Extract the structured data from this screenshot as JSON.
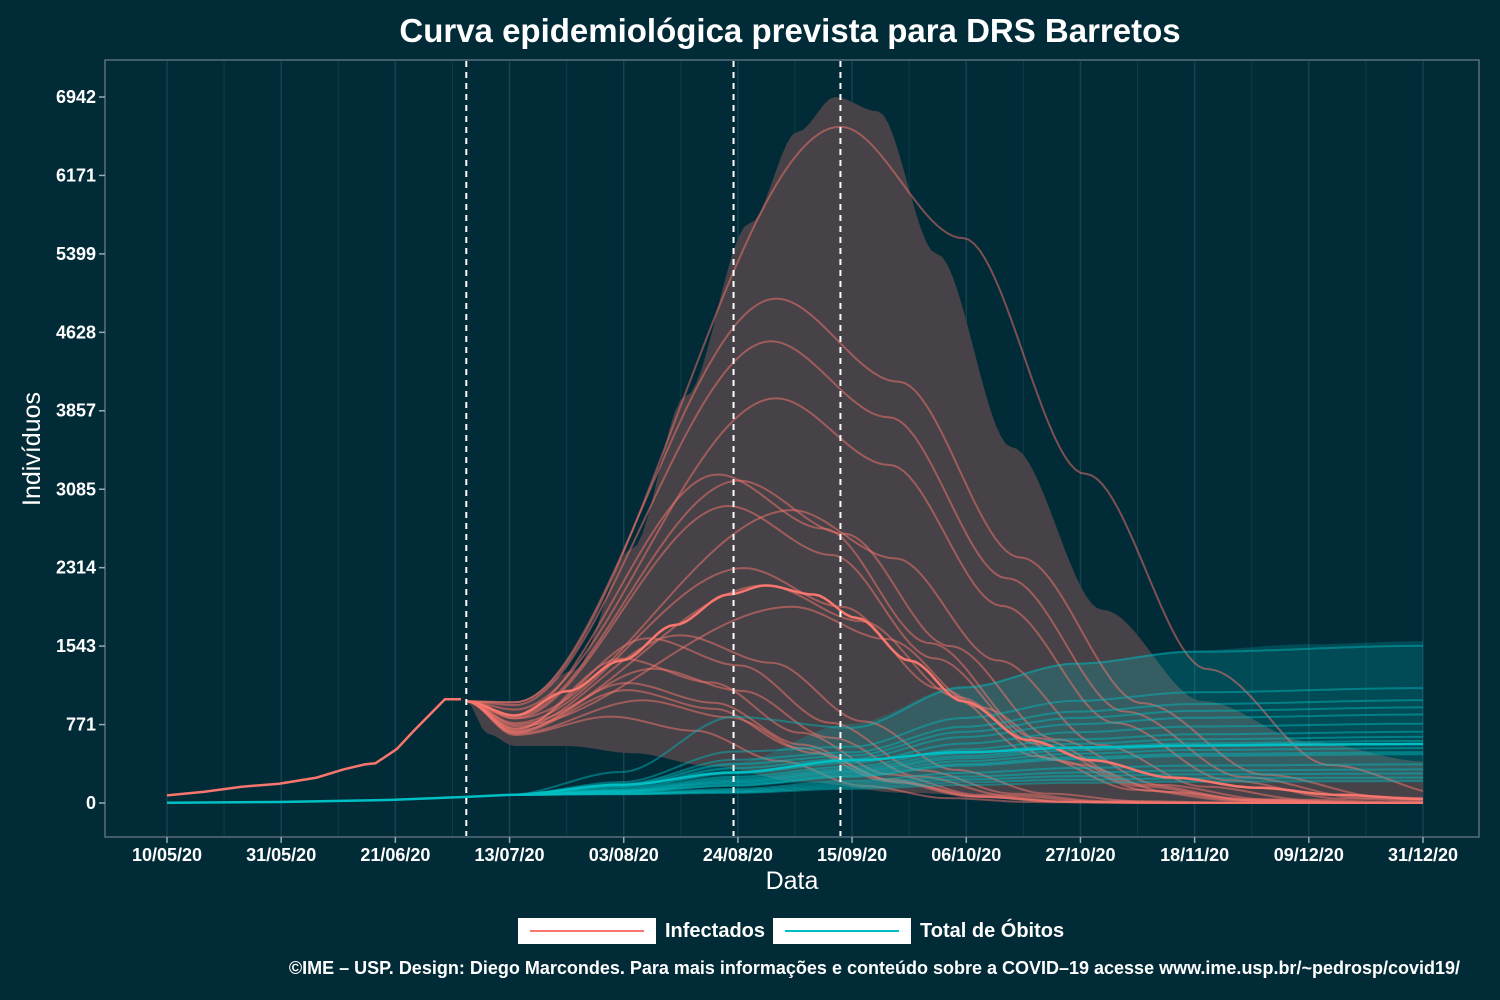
{
  "chart_data": {
    "type": "line",
    "title": "Curva epidemiológica prevista para DRS Barretos",
    "xlabel": "Data",
    "ylabel": "Indivíduos",
    "x_ticks": [
      "10/05/20",
      "31/05/20",
      "21/06/20",
      "13/07/20",
      "03/08/20",
      "24/08/20",
      "15/09/20",
      "06/10/20",
      "27/10/20",
      "18/11/20",
      "09/12/20",
      "31/12/20"
    ],
    "x_range": [
      "2020-05-10",
      "2020-12-31"
    ],
    "y_ticks": [
      0,
      771,
      1543,
      2314,
      3085,
      3857,
      4628,
      5399,
      6171,
      6942
    ],
    "ylim": [
      -330,
      7060
    ],
    "vlines": [
      "2020-07-05",
      "2020-08-24",
      "2020-09-13"
    ],
    "grid": "vertical",
    "legend_position": "bottom",
    "colors": {
      "background": "#022b38",
      "infected": "#f8766d",
      "deaths": "#00bfc4",
      "band": "#4a4348",
      "vline": "#ffffff"
    },
    "series": [
      {
        "name": "Infectados",
        "observed": [
          [
            "2020-05-10",
            75
          ],
          [
            "2020-05-17",
            110
          ],
          [
            "2020-05-24",
            160
          ],
          [
            "2020-05-31",
            190
          ],
          [
            "2020-06-07",
            250
          ],
          [
            "2020-06-12",
            330
          ],
          [
            "2020-06-16",
            380
          ],
          [
            "2020-06-18",
            390
          ],
          [
            "2020-06-22",
            530
          ],
          [
            "2020-06-25",
            700
          ],
          [
            "2020-07-01",
            1020
          ],
          [
            "2020-07-04",
            1020
          ]
        ],
        "median_forecast": [
          [
            "2020-07-05",
            1000
          ],
          [
            "2020-07-14",
            860
          ],
          [
            "2020-07-24",
            1100
          ],
          [
            "2020-08-03",
            1400
          ],
          [
            "2020-08-13",
            1750
          ],
          [
            "2020-08-23",
            2050
          ],
          [
            "2020-08-30",
            2140
          ],
          [
            "2020-09-08",
            2050
          ],
          [
            "2020-09-16",
            1820
          ],
          [
            "2020-09-26",
            1400
          ],
          [
            "2020-10-06",
            1000
          ],
          [
            "2020-10-18",
            620
          ],
          [
            "2020-10-30",
            420
          ],
          [
            "2020-11-14",
            250
          ],
          [
            "2020-11-30",
            150
          ],
          [
            "2020-12-15",
            80
          ],
          [
            "2020-12-31",
            40
          ]
        ],
        "band_upper": [
          [
            "2020-07-05",
            1000
          ],
          [
            "2020-07-15",
            980
          ],
          [
            "2020-07-25",
            1300
          ],
          [
            "2020-08-05",
            2500
          ],
          [
            "2020-08-15",
            4000
          ],
          [
            "2020-08-27",
            5700
          ],
          [
            "2020-09-05",
            6600
          ],
          [
            "2020-09-12",
            6942
          ],
          [
            "2020-09-20",
            6800
          ],
          [
            "2020-10-01",
            5400
          ],
          [
            "2020-10-15",
            3500
          ],
          [
            "2020-11-01",
            1900
          ],
          [
            "2020-11-20",
            1000
          ],
          [
            "2020-12-10",
            600
          ],
          [
            "2020-12-31",
            410
          ]
        ],
        "band_lower": [
          [
            "2020-07-05",
            1000
          ],
          [
            "2020-07-09",
            680
          ],
          [
            "2020-07-14",
            560
          ],
          [
            "2020-07-24",
            560
          ],
          [
            "2020-08-05",
            490
          ],
          [
            "2020-08-20",
            360
          ],
          [
            "2020-09-05",
            210
          ],
          [
            "2020-09-25",
            100
          ],
          [
            "2020-10-20",
            30
          ],
          [
            "2020-11-20",
            10
          ],
          [
            "2020-12-31",
            0
          ]
        ],
        "scenario_peaks": [
          [
            6650,
            "2020-09-13"
          ],
          [
            4960,
            "2020-09-01"
          ],
          [
            4540,
            "2020-08-31"
          ],
          [
            3980,
            "2020-09-01"
          ],
          [
            3230,
            "2020-08-21"
          ],
          [
            3170,
            "2020-08-25"
          ],
          [
            2920,
            "2020-08-23"
          ],
          [
            2880,
            "2020-09-04"
          ],
          [
            2310,
            "2020-08-26"
          ],
          [
            2140,
            "2020-08-30"
          ],
          [
            1930,
            "2020-09-04"
          ],
          [
            1650,
            "2020-08-14"
          ],
          [
            1620,
            "2020-08-08"
          ],
          [
            1420,
            "2020-08-03"
          ],
          [
            1320,
            "2020-08-09"
          ],
          [
            1180,
            "2020-08-04"
          ],
          [
            1110,
            "2020-08-04"
          ],
          [
            1010,
            "2020-08-07"
          ],
          [
            850,
            "2020-08-01"
          ]
        ]
      },
      {
        "name": "Total de Óbitos",
        "observed": [
          [
            "2020-05-10",
            2
          ],
          [
            "2020-05-31",
            10
          ],
          [
            "2020-06-21",
            30
          ],
          [
            "2020-07-05",
            60
          ],
          [
            "2020-07-13",
            80
          ]
        ],
        "median_forecast": [
          [
            "2020-07-13",
            80
          ],
          [
            "2020-08-03",
            180
          ],
          [
            "2020-08-24",
            300
          ],
          [
            "2020-09-15",
            420
          ],
          [
            "2020-10-06",
            500
          ],
          [
            "2020-10-27",
            545
          ],
          [
            "2020-11-18",
            565
          ],
          [
            "2020-12-09",
            575
          ],
          [
            "2020-12-31",
            580
          ]
        ],
        "band_upper": [
          [
            "2020-07-13",
            80
          ],
          [
            "2020-08-03",
            200
          ],
          [
            "2020-08-24",
            400
          ],
          [
            "2020-09-15",
            780
          ],
          [
            "2020-10-06",
            1150
          ],
          [
            "2020-10-27",
            1380
          ],
          [
            "2020-11-18",
            1500
          ],
          [
            "2020-12-09",
            1560
          ],
          [
            "2020-12-31",
            1590
          ]
        ],
        "band_lower": [
          [
            "2020-07-13",
            80
          ],
          [
            "2020-08-03",
            150
          ],
          [
            "2020-08-24",
            185
          ],
          [
            "2020-09-15",
            200
          ],
          [
            "2020-10-06",
            210
          ],
          [
            "2020-10-27",
            212
          ],
          [
            "2020-11-18",
            213
          ],
          [
            "2020-12-31",
            215
          ]
        ],
        "scenario_finals": [
          1545,
          1130,
          1010,
          940,
          870,
          780,
          700,
          650,
          610,
          580,
          540,
          500,
          480,
          380,
          330,
          290,
          250,
          215
        ]
      }
    ]
  },
  "legend": {
    "infected_label": "Infectados",
    "deaths_label": "Total de Óbitos"
  },
  "caption": "©IME – USP. Design: Diego Marcondes. Para mais informações e conteúdo sobre a COVID–19 acesse www.ime.usp.br/~pedrosp/covid19/"
}
